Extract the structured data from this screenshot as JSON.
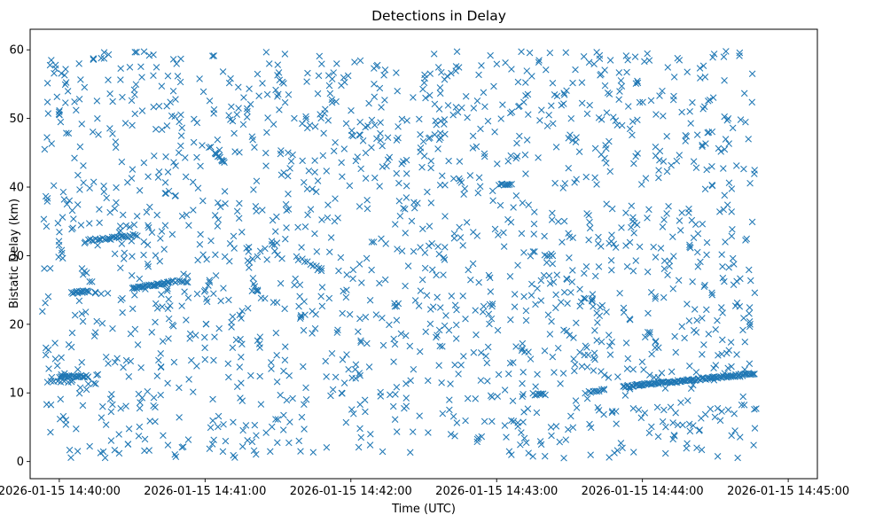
{
  "chart_data": {
    "type": "scatter",
    "title": "Detections in Delay",
    "xlabel": "Time (UTC)",
    "ylabel": "Bistatic Delay (km)",
    "x_type": "datetime",
    "x_unit": "seconds past 2026-01-15 14:40:00",
    "xlim": [
      -12,
      312
    ],
    "ylim": [
      -2.5,
      63
    ],
    "x_ticks": [
      {
        "value": 0,
        "label": "2026-01-15 14:40:00"
      },
      {
        "value": 60,
        "label": "2026-01-15 14:41:00"
      },
      {
        "value": 120,
        "label": "2026-01-15 14:42:00"
      },
      {
        "value": 180,
        "label": "2026-01-15 14:43:00"
      },
      {
        "value": 240,
        "label": "2026-01-15 14:44:00"
      },
      {
        "value": 300,
        "label": "2026-01-15 14:45:00"
      }
    ],
    "y_ticks": [
      {
        "value": 0,
        "label": "0"
      },
      {
        "value": 10,
        "label": "10"
      },
      {
        "value": 20,
        "label": "20"
      },
      {
        "value": 30,
        "label": "30"
      },
      {
        "value": 40,
        "label": "40"
      },
      {
        "value": 50,
        "label": "50"
      },
      {
        "value": 60,
        "label": "60"
      }
    ],
    "grid": false,
    "marker": "x",
    "color": "#1f77b4",
    "clutter": {
      "x_range": [
        -7,
        287
      ],
      "y_range": [
        0.5,
        59.8
      ],
      "count": 1700
    },
    "tracks": [
      {
        "x_start": -5,
        "x_end": 5,
        "y_start": 11.6,
        "y_end": 11.6,
        "count": 8
      },
      {
        "x_start": 0,
        "x_end": 12,
        "y_start": 12.4,
        "y_end": 12.4,
        "count": 24
      },
      {
        "x_start": 5,
        "x_end": 12,
        "y_start": 24.6,
        "y_end": 24.8,
        "count": 14
      },
      {
        "x_start": 12,
        "x_end": 32,
        "y_start": 32.2,
        "y_end": 33.0,
        "count": 28
      },
      {
        "x_start": 30,
        "x_end": 45,
        "y_start": 25.3,
        "y_end": 26.0,
        "count": 32
      },
      {
        "x_start": 45,
        "x_end": 53,
        "y_start": 26.2,
        "y_end": 26.2,
        "count": 10
      },
      {
        "x_start": 64,
        "x_end": 68,
        "y_start": 45.0,
        "y_end": 43.6,
        "count": 10
      },
      {
        "x_start": 100,
        "x_end": 108,
        "y_start": 29.5,
        "y_end": 28.0,
        "count": 8
      },
      {
        "x_start": 181,
        "x_end": 186,
        "y_start": 40.3,
        "y_end": 40.3,
        "count": 8
      },
      {
        "x_start": 195,
        "x_end": 200,
        "y_start": 9.8,
        "y_end": 9.8,
        "count": 8
      },
      {
        "x_start": 218,
        "x_end": 224,
        "y_start": 10.2,
        "y_end": 10.4,
        "count": 8
      },
      {
        "x_start": 232,
        "x_end": 286,
        "y_start": 10.9,
        "y_end": 12.8,
        "count": 110
      }
    ]
  }
}
